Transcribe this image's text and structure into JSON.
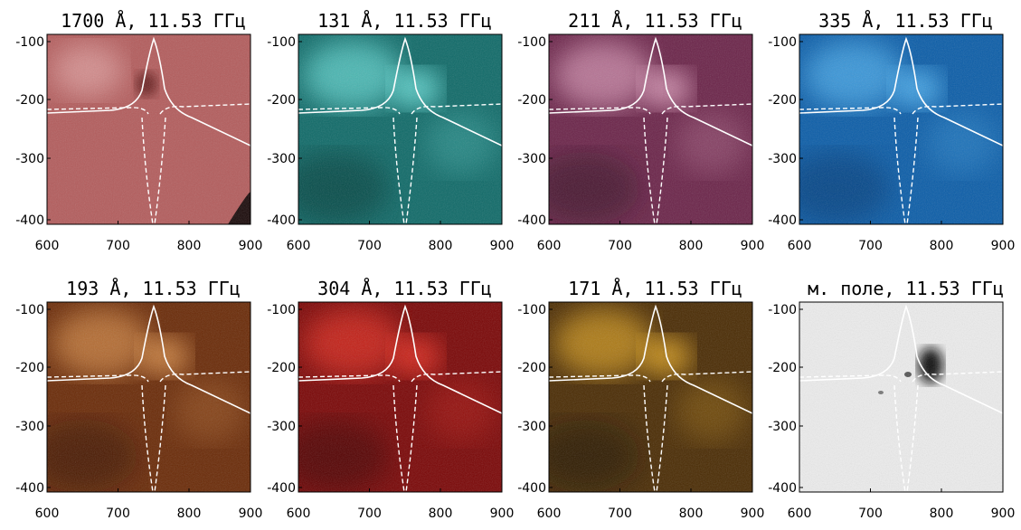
{
  "panels": [
    {
      "id": "p1700",
      "title": "1700 Å, 11.53 ГГц",
      "colormap": "red-pink",
      "colors": {
        "base": "#b35c5c",
        "dark": "#6b2020",
        "light": "#f3c0c0"
      }
    },
    {
      "id": "p131",
      "title": "131 Å, 11.53 ГГц",
      "colormap": "teal",
      "colors": {
        "base": "#0f6a68",
        "dark": "#03302f",
        "light": "#7ff6f0"
      }
    },
    {
      "id": "p211",
      "title": "211 Å, 11.53 ГГц",
      "colormap": "magenta",
      "colors": {
        "base": "#6b2449",
        "dark": "#2a0a1c",
        "light": "#f3b6d2"
      }
    },
    {
      "id": "p335",
      "title": "335 Å, 11.53 ГГц",
      "colormap": "blue",
      "colors": {
        "base": "#0b5da8",
        "dark": "#04316a",
        "light": "#63c6ff"
      }
    },
    {
      "id": "p193",
      "title": "193 Å, 11.53 ГГц",
      "colormap": "brown-orange",
      "colors": {
        "base": "#6a2a07",
        "dark": "#2d0e02",
        "light": "#f1a55a"
      }
    },
    {
      "id": "p304",
      "title": "304 Å, 11.53 ГГц",
      "colormap": "red",
      "colors": {
        "base": "#7a0606",
        "dark": "#320000",
        "light": "#ff3a2a"
      }
    },
    {
      "id": "p171",
      "title": "171 Å, 11.53 ГГц",
      "colormap": "gold",
      "colors": {
        "base": "#4a2b03",
        "dark": "#120800",
        "light": "#ffbe2a"
      }
    },
    {
      "id": "pmag",
      "title": "м. поле, 11.53 ГГц",
      "colormap": "gray",
      "colors": {
        "base": "#ececec",
        "dark": "#111111",
        "light": "#ffffff"
      }
    }
  ],
  "axes": {
    "x_ticks": [
      "600",
      "700",
      "800",
      "900"
    ],
    "y_ticks": [
      "-100",
      "-200",
      "-300",
      "-400"
    ],
    "x_range": [
      600,
      900
    ],
    "y_range": [
      -80,
      -410
    ]
  }
}
